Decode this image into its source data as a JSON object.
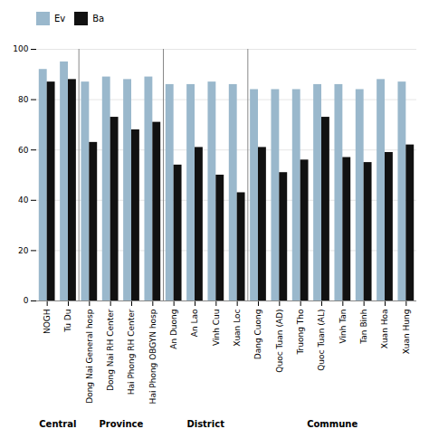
{
  "chart_data": {
    "type": "bar",
    "categories": [
      "NOGH",
      "Tu Du",
      "Dong Nai General hosp",
      "Dong Nai RH Center",
      "Hai Phong RH Center",
      "Hai Phong OBGYN hosp",
      "An Duong",
      "An Lao",
      "Vinh Cuu",
      "Xuan Loc",
      "Dang Cuong",
      "Quoc Tuan (AD)",
      "Truong Tho",
      "Quoc Tuan (AL)",
      "Vinh Tan",
      "Tan Binh",
      "Xuan Hoa",
      "Xuan Hung"
    ],
    "groups": [
      "Central",
      "Central",
      "Province",
      "Province",
      "Province",
      "Province",
      "District",
      "District",
      "District",
      "District",
      "Commune",
      "Commune",
      "Commune",
      "Commune",
      "Commune",
      "Commune",
      "Commune",
      "Commune"
    ],
    "series": [
      {
        "name": "Ev",
        "color": "#9ab8cc",
        "values": [
          92,
          95,
          87,
          89,
          88,
          89,
          86,
          86,
          87,
          86,
          84,
          84,
          84,
          86,
          86,
          84,
          88,
          87
        ]
      },
      {
        "name": "Ba",
        "color": "#111111",
        "values": [
          87,
          88,
          63,
          73,
          68,
          71,
          54,
          61,
          50,
          43,
          61,
          51,
          56,
          73,
          57,
          55,
          59,
          62
        ]
      }
    ],
    "ylim": [
      0,
      100
    ],
    "yticks": [
      0,
      20,
      40,
      60,
      80,
      100
    ],
    "grid": true,
    "legend": "right"
  }
}
